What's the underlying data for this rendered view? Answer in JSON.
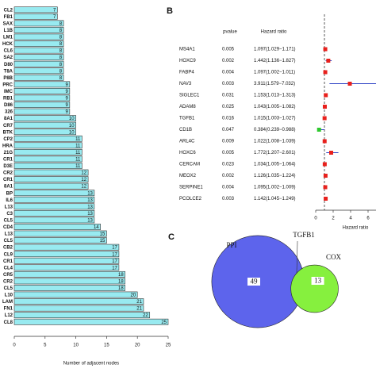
{
  "chart_data": [
    {
      "type": "bar",
      "orientation": "horizontal",
      "categories": [
        "CL2",
        "FB1",
        "SAX",
        "L1B",
        "LM1",
        "HCK",
        "CL6",
        "SA2",
        "D80",
        "T8A",
        "P8B",
        "PRC",
        "IMC",
        "RB1",
        "D86",
        "326",
        "8A1",
        "CR7",
        "BTK",
        "CP2",
        "HRA",
        "21G",
        "CR1",
        "D3E",
        "CR2",
        "CR1",
        "8A1",
        "BP",
        "IL6",
        "L13",
        "C3",
        "CL5",
        "CD4",
        "L13",
        "CL5",
        "CB2",
        "CL9",
        "CR1",
        "CL4",
        "CR5",
        "CR2",
        "CL5",
        "L10",
        "LAM",
        "FN1",
        "L12",
        "CL8"
      ],
      "values": [
        7,
        7,
        8,
        8,
        8,
        8,
        8,
        8,
        8,
        8,
        8,
        9,
        9,
        9,
        9,
        9,
        10,
        10,
        10,
        11,
        11,
        11,
        11,
        11,
        12,
        12,
        12,
        13,
        13,
        13,
        13,
        13,
        14,
        15,
        15,
        17,
        17,
        17,
        17,
        18,
        18,
        18,
        20,
        21,
        21,
        22,
        25
      ],
      "color": "#98eaf0",
      "x_label": "Number of adjacent nodes",
      "xlim": [
        0,
        25
      ],
      "xticks": [
        0,
        5,
        10,
        15,
        20,
        25
      ]
    },
    {
      "type": "forest",
      "panel_label": "B",
      "column_headers": [
        "pvalue",
        "Hazard ratio"
      ],
      "categories": [
        "MS4A1",
        "HOXC9",
        "FABP4",
        "NAV3",
        "SIGLEC1",
        "ADAM8",
        "TGFB1",
        "CD1B",
        "ARL4C",
        "HOXC6",
        "CERCAM",
        "MEOX2",
        "SERPINE1",
        "PCOLCE2"
      ],
      "pvalues": [
        0.005,
        0.002,
        0.004,
        0.003,
        0.031,
        0.025,
        0.016,
        0.047,
        0.009,
        0.005,
        0.023,
        0.002,
        0.004,
        0.003
      ],
      "values": [
        1.097,
        1.442,
        1.097,
        3.911,
        1.153,
        1.043,
        1.015,
        0.384,
        1.022,
        1.772,
        1.034,
        1.126,
        1.095,
        1.142
      ],
      "ci_low": [
        1.029,
        1.136,
        1.002,
        1.579,
        1.013,
        1.005,
        1.003,
        0.239,
        1.008,
        1.207,
        1.005,
        1.035,
        1.002,
        1.045
      ],
      "ci_high": [
        1.171,
        1.827,
        1.011,
        7.032,
        1.313,
        1.082,
        1.027,
        0.988,
        1.039,
        2.601,
        1.064,
        1.224,
        1.009,
        1.249
      ],
      "value_labels": [
        "1.097(1.029−1.171)",
        "1.442(1.136−1.827)",
        "1.097(1.002−1.011)",
        "3.911(1.579−7.032)",
        "1.153(1.013−1.313)",
        "1.043(1.005−1.082)",
        "1.015(1.003−1.027)",
        "0.384(0.239−0.988)",
        "1.022(1.008−1.039)",
        "1.772(1.207−2.601)",
        "1.034(1.005−1.064)",
        "1.126(1.035−1.224)",
        "1.095(1.002−1.009)",
        "1.142(1.045−1.249)"
      ],
      "reference": 1,
      "x_label": "Hazard ratio",
      "xlim": [
        0,
        7
      ],
      "xticks": [
        0,
        2,
        4,
        6
      ],
      "colors": {
        "risk": "#e8201c",
        "protective": "#2ec82e",
        "ci": "#2a3fc4"
      }
    },
    {
      "type": "venn",
      "panel_label": "C",
      "sets": [
        {
          "name": "PPI",
          "size": 49,
          "color": "#5d64ec"
        },
        {
          "name": "COX",
          "size": 13,
          "color": "#86f03e"
        }
      ],
      "intersection_label": "TGFB1"
    }
  ]
}
